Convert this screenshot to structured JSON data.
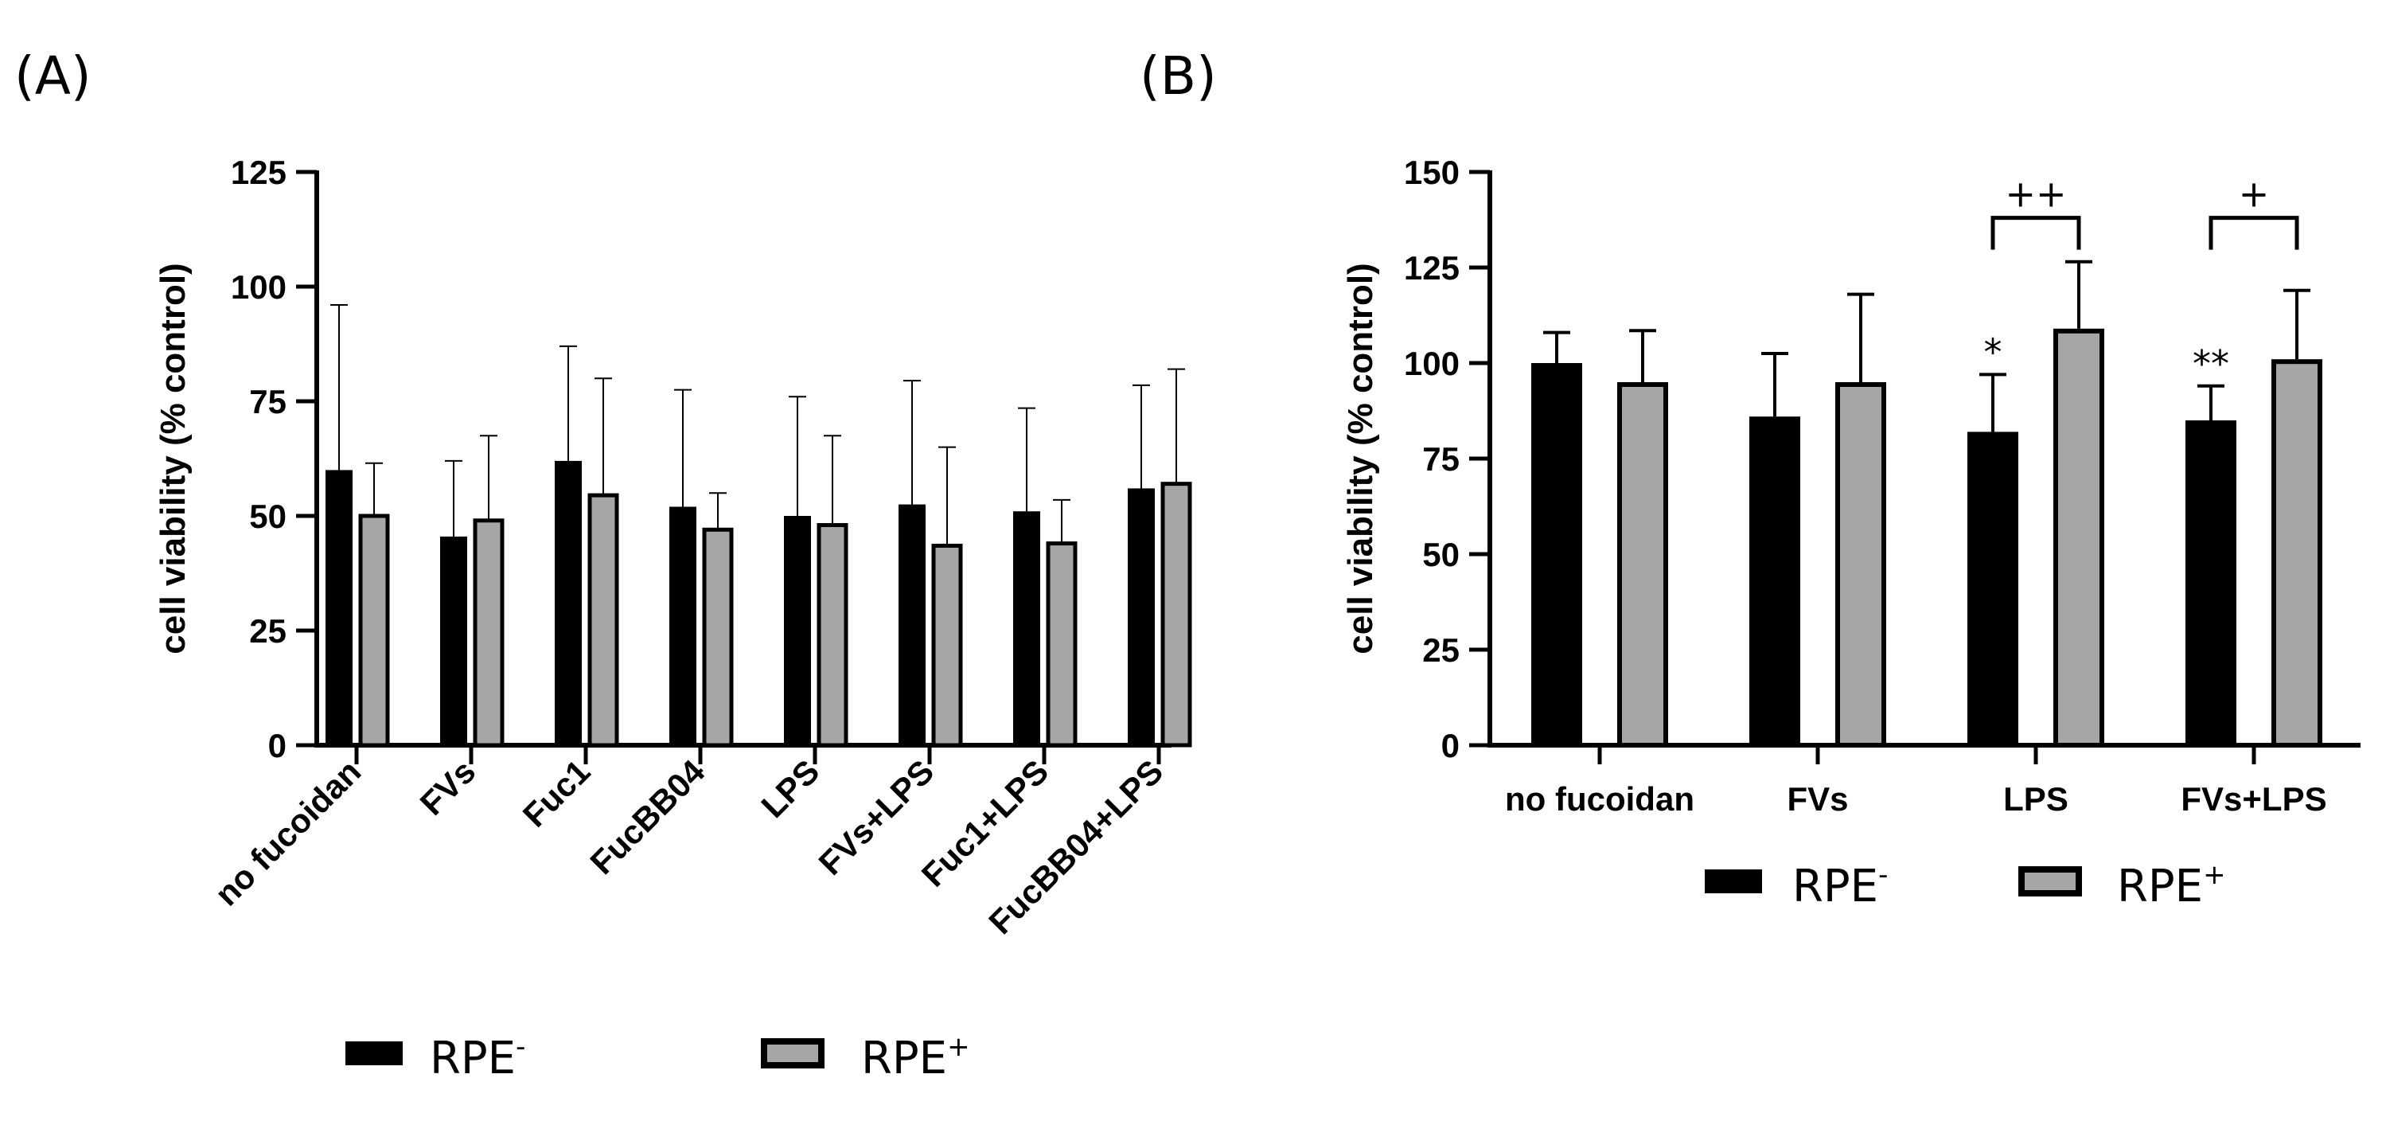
{
  "colors": {
    "rpe_minus": "#000000",
    "rpe_plus": "#a6a6a6",
    "axis": "#000000"
  },
  "chart_data": [
    {
      "panel": "(A)",
      "type": "bar",
      "ylabel": "cell viability (% control)",
      "ylim": [
        0,
        125
      ],
      "yticks": [
        "0",
        "25",
        "50",
        "75",
        "100",
        "125"
      ],
      "categories": [
        "no fucoidan",
        "FVs",
        "Fuc1",
        "FucBB04",
        "LPS",
        "FVs+LPS",
        "Fuc1+LPS",
        "FucBB04+LPS"
      ],
      "series": [
        {
          "name": "RPE⁻",
          "values": [
            60,
            45.5,
            62,
            52,
            50,
            52.5,
            51,
            56
          ],
          "errors": [
            36,
            16.5,
            25,
            25.5,
            26,
            27,
            22.5,
            22.5
          ]
        },
        {
          "name": "RPE⁺",
          "values": [
            50,
            49,
            54.5,
            47,
            48,
            43.5,
            44,
            57
          ],
          "errors": [
            11.5,
            18.5,
            25.5,
            8,
            19.5,
            21.5,
            9.5,
            25
          ]
        }
      ],
      "legend": {
        "position": "bottom",
        "items": [
          {
            "base": "RPE",
            "sup": "-"
          },
          {
            "base": "RPE",
            "sup": "+"
          }
        ]
      }
    },
    {
      "panel": "(B)",
      "type": "bar",
      "ylabel": "cell viability (% control)",
      "ylim": [
        0,
        150
      ],
      "yticks": [
        "0",
        "25",
        "50",
        "75",
        "100",
        "125",
        "150"
      ],
      "categories": [
        "no fucoidan",
        "FVs",
        "LPS",
        "FVs+LPS"
      ],
      "series": [
        {
          "name": "RPE⁻",
          "values": [
            100,
            86,
            82,
            85
          ],
          "errors": [
            8,
            16.5,
            15,
            9
          ]
        },
        {
          "name": "RPE⁺",
          "values": [
            95,
            95,
            109,
            101
          ],
          "errors": [
            13.5,
            23,
            17.5,
            18
          ]
        }
      ],
      "annotations": [
        {
          "category": "LPS",
          "series": "RPE⁻",
          "text": "*"
        },
        {
          "category": "FVs+LPS",
          "series": "RPE⁻",
          "text": "**"
        }
      ],
      "brackets": [
        {
          "category": "LPS",
          "text": "++",
          "y": 138
        },
        {
          "category": "FVs+LPS",
          "text": "+",
          "y": 138
        }
      ],
      "legend": {
        "position": "bottom",
        "items": [
          {
            "base": "RPE",
            "sup": "-"
          },
          {
            "base": "RPE",
            "sup": "+"
          }
        ]
      }
    }
  ]
}
